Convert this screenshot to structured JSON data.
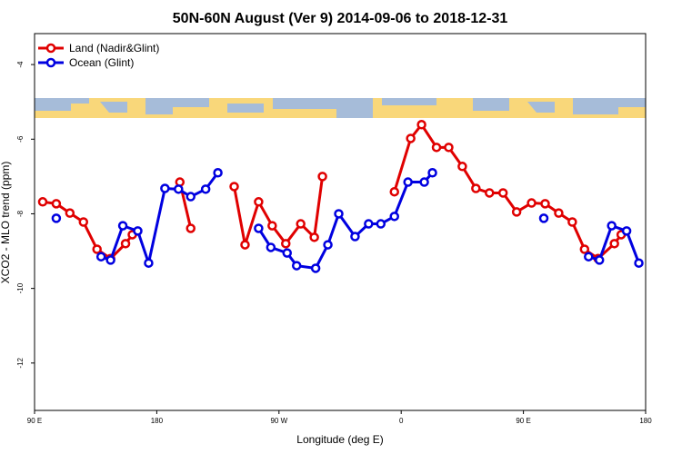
{
  "chart_data": {
    "type": "line",
    "title": "50N-60N August (Ver 9)   2014-09-06 to 2018-12-31",
    "x_label": "Longitude (deg E)",
    "y_label": "XCO2 - MLO trend (ppm)",
    "xlim": [
      90,
      540
    ],
    "ylim": [
      -13.27,
      -3.17
    ],
    "xticks": [
      {
        "value": 90,
        "label": "90 E"
      },
      180,
      {
        "value": 270,
        "label": "90 W"
      },
      {
        "value": 360,
        "label": "0"
      },
      {
        "value": 450,
        "label": "90 E"
      },
      {
        "value": 540,
        "label": "180"
      }
    ],
    "yticks": [
      -4,
      -6,
      -8,
      -10,
      -12
    ],
    "legend": "upper left",
    "series": [
      {
        "name": "Land (Nadir&Glint)",
        "color": "#e00000",
        "x": [
          96,
          106,
          116,
          126,
          136,
          146,
          157,
          162,
          null,
          197,
          205,
          null,
          237,
          245,
          255,
          265,
          275,
          286,
          296,
          302,
          null,
          355,
          367,
          375,
          386,
          395,
          405,
          415,
          425,
          435,
          445,
          456,
          466,
          476,
          486,
          495,
          505,
          517,
          522
        ],
        "values": [
          -7.68,
          -7.73,
          -7.98,
          -8.22,
          -8.95,
          -9.2,
          -8.8,
          -8.56,
          null,
          -7.15,
          -8.39,
          null,
          -7.27,
          -8.83,
          -7.68,
          -8.32,
          -8.8,
          -8.27,
          -8.63,
          -7.0,
          null,
          -7.41,
          -5.98,
          -5.61,
          -6.22,
          -6.22,
          -6.73,
          -7.32,
          -7.44,
          -7.44,
          -7.95,
          -7.71,
          -7.73,
          -7.98,
          -8.22,
          -8.95,
          -9.2,
          -8.8,
          -8.56
        ]
      },
      {
        "name": "Ocean (Glint)",
        "color": "#0000e0",
        "x": [
          106,
          null,
          139,
          146,
          155,
          166,
          174,
          186,
          196,
          205,
          216,
          225,
          null,
          255,
          264,
          276,
          283,
          297,
          306,
          314,
          326,
          336,
          345,
          355,
          365,
          377,
          383,
          null,
          465,
          null,
          498,
          506,
          515,
          526,
          535
        ],
        "values": [
          -8.12,
          null,
          -9.15,
          -9.24,
          -8.32,
          -8.46,
          -9.32,
          -7.32,
          -7.34,
          -7.54,
          -7.34,
          -6.9,
          null,
          -8.39,
          -8.9,
          -9.05,
          -9.39,
          -9.46,
          -8.83,
          -8.0,
          -8.61,
          -8.27,
          -8.27,
          -8.07,
          -7.15,
          -7.15,
          -6.9,
          null,
          -8.12,
          null,
          -9.15,
          -9.24,
          -8.32,
          -8.46,
          -9.32
        ]
      }
    ]
  }
}
